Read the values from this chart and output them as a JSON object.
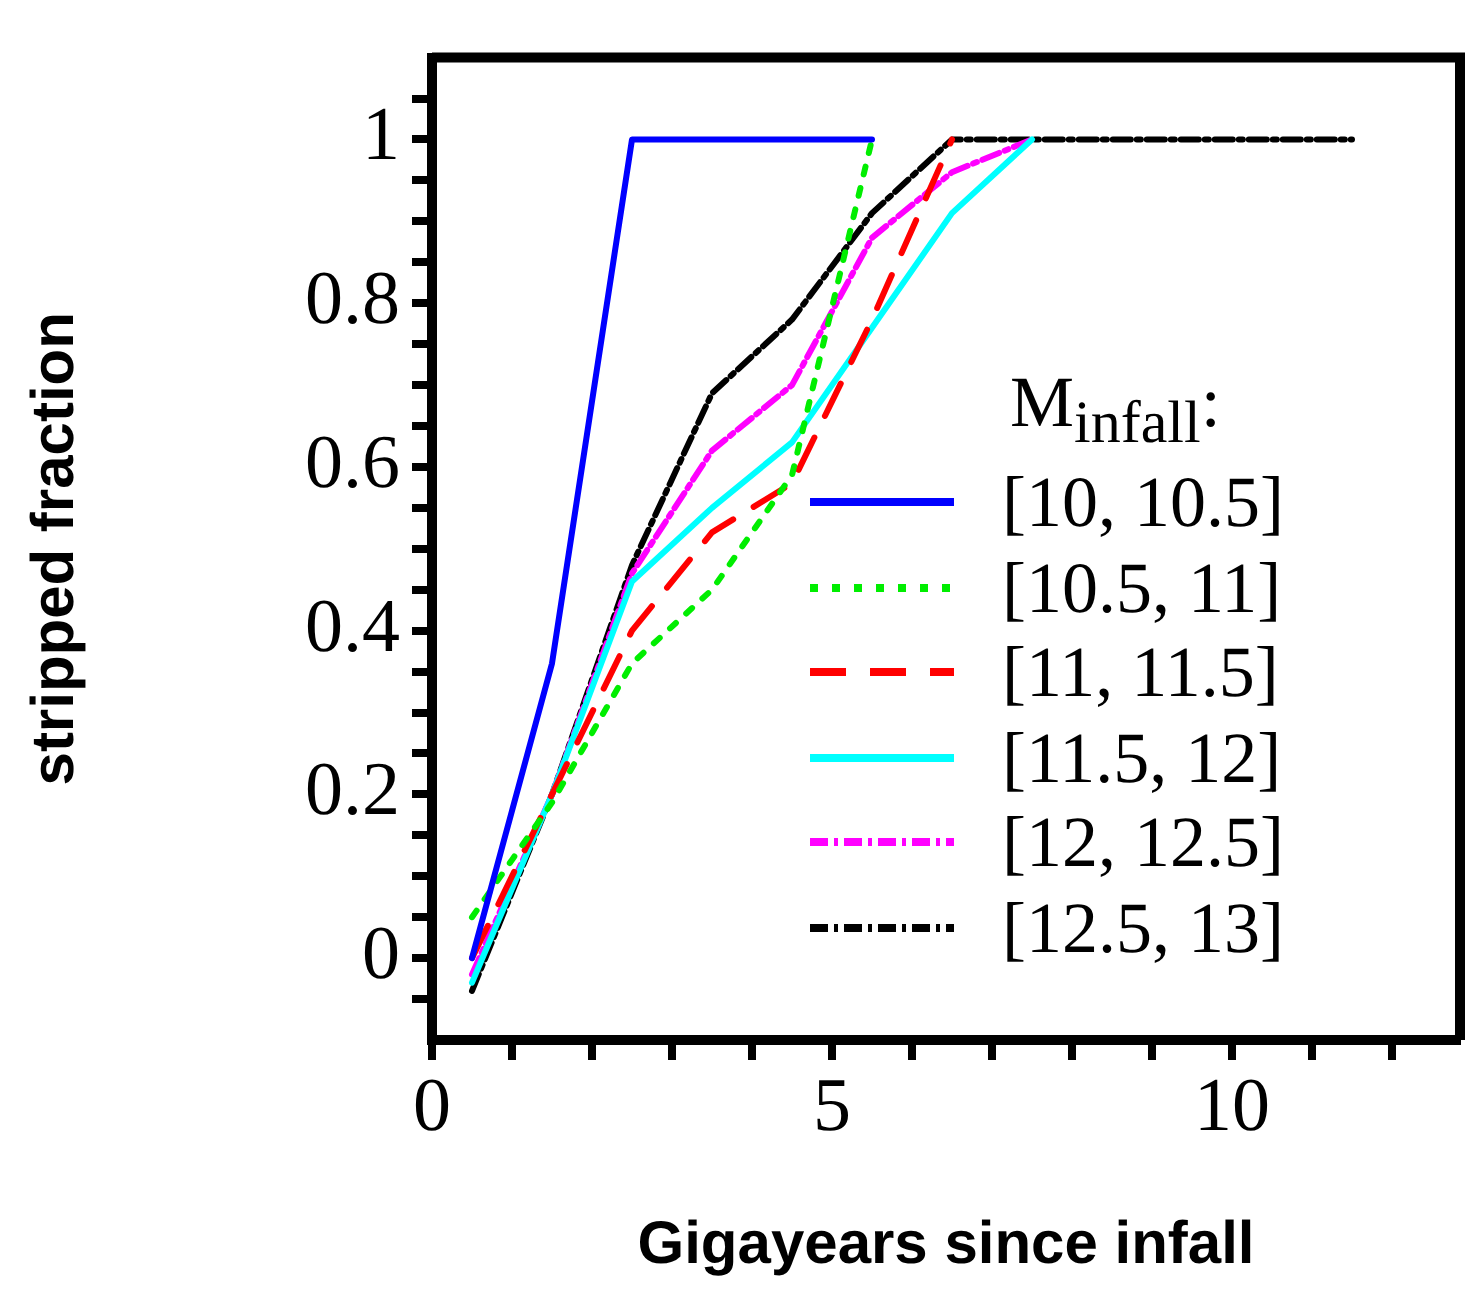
{
  "chart_data": {
    "type": "line",
    "xlabel": "Gigayears since infall",
    "ylabel": "stripped fraction",
    "legend_title": "M$_{infall}$:",
    "legend": "bottom right",
    "xlim": [
      0,
      12.85
    ],
    "ylim": [
      -0.1,
      1.1
    ],
    "xticks": [
      0,
      {
        "value": 1,
        "label": null
      },
      {
        "value": 2,
        "label": null
      },
      {
        "value": 3,
        "label": null
      },
      {
        "value": 4,
        "label": null
      },
      5,
      {
        "value": 6,
        "label": null
      },
      {
        "value": 7,
        "label": null
      },
      {
        "value": 8,
        "label": null
      },
      {
        "value": 9,
        "label": null
      },
      10,
      {
        "value": 11,
        "label": null
      },
      {
        "value": 12,
        "label": null
      }
    ],
    "yticks": [
      {
        "value": -0.05,
        "label": null
      },
      0,
      {
        "value": 0.05,
        "label": null
      },
      {
        "value": 0.1,
        "label": null
      },
      {
        "value": 0.15,
        "label": null
      },
      0.2,
      {
        "value": 0.25,
        "label": null
      },
      {
        "value": 0.3,
        "label": null
      },
      {
        "value": 0.35,
        "label": null
      },
      0.4,
      {
        "value": 0.45,
        "label": null
      },
      {
        "value": 0.5,
        "label": null
      },
      {
        "value": 0.55,
        "label": null
      },
      0.6,
      {
        "value": 0.65,
        "label": null
      },
      {
        "value": 0.7,
        "label": null
      },
      {
        "value": 0.75,
        "label": null
      },
      0.8,
      {
        "value": 0.85,
        "label": null
      },
      {
        "value": 0.9,
        "label": null
      },
      {
        "value": 0.95,
        "label": null
      },
      1,
      {
        "value": 1.05,
        "label": null
      }
    ],
    "x": [
      0.5,
      1.5,
      2.5,
      3.5,
      4.5,
      5.5,
      6.5,
      7.5,
      8.5,
      9.5,
      10.5,
      11.5
    ],
    "series": [
      {
        "name": "[10, 10.5]",
        "color": "#0000ff",
        "line_style": "solid",
        "values": [
          0,
          0.36,
          1,
          1,
          1,
          1,
          null,
          null,
          null,
          null,
          null,
          null
        ]
      },
      {
        "name": "[10.5, 11]",
        "color": "#00ee00",
        "line_style": "dotted",
        "values": [
          0.05,
          0.19,
          0.36,
          0.45,
          0.59,
          1,
          null,
          null,
          null,
          null,
          null,
          null
        ]
      },
      {
        "name": "[11, 11.5]",
        "color": "#ff0000",
        "line_style": "dashed",
        "values": [
          0,
          0.2,
          0.4,
          0.52,
          0.58,
          0.78,
          1,
          null,
          null,
          null,
          null,
          null
        ]
      },
      {
        "name": "[11.5, 12]",
        "color": "#00ffff",
        "line_style": "solid",
        "values": [
          -0.03,
          0.2,
          0.46,
          0.55,
          0.63,
          0.77,
          0.91,
          1,
          null,
          null,
          null,
          null
        ]
      },
      {
        "name": "[12, 12.5]",
        "color": "#ff00ff",
        "line_style": "dashdot",
        "values": [
          -0.02,
          0.2,
          0.47,
          0.62,
          0.7,
          0.88,
          0.96,
          1,
          null,
          null,
          null,
          null
        ]
      },
      {
        "name": "[12.5, 13]",
        "color": "#000000",
        "line_style": "dashdot",
        "values": [
          -0.04,
          0.2,
          0.48,
          0.69,
          0.78,
          0.91,
          1,
          1,
          1,
          1,
          1,
          1
        ]
      }
    ]
  }
}
